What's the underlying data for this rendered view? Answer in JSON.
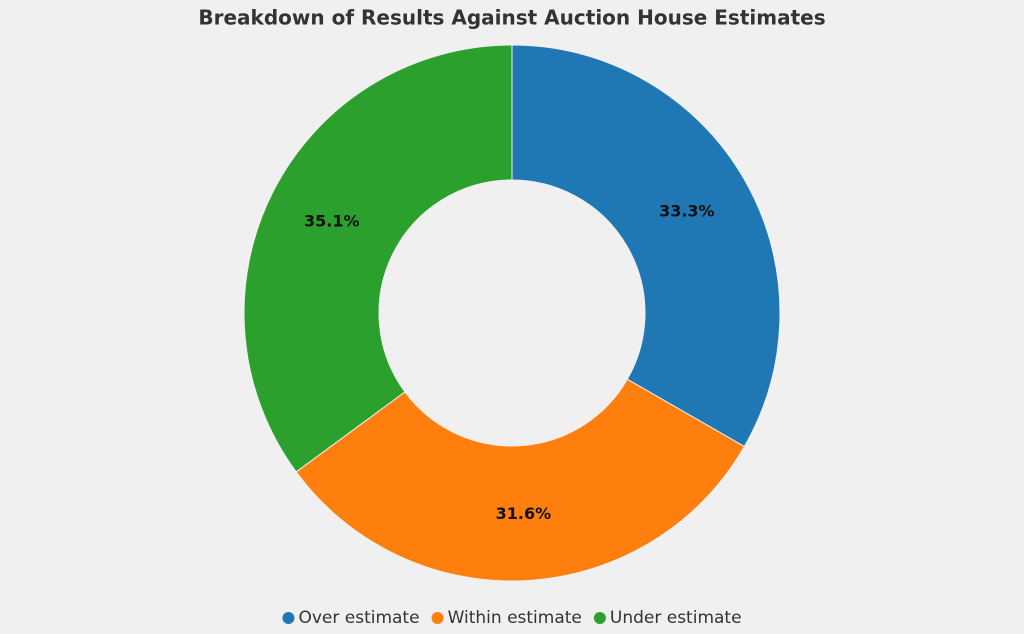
{
  "chart_data": {
    "type": "donut",
    "title": "Breakdown of Results Against Auction House Estimates",
    "categories": [
      "Over estimate",
      "Within estimate",
      "Under estimate"
    ],
    "values": [
      33.3,
      31.6,
      35.1
    ],
    "value_labels": [
      "33.3%",
      "31.6%",
      "35.1%"
    ],
    "colors": [
      "#1f77b4",
      "#ff7f0e",
      "#2ca02c"
    ],
    "legend": "bottom"
  }
}
